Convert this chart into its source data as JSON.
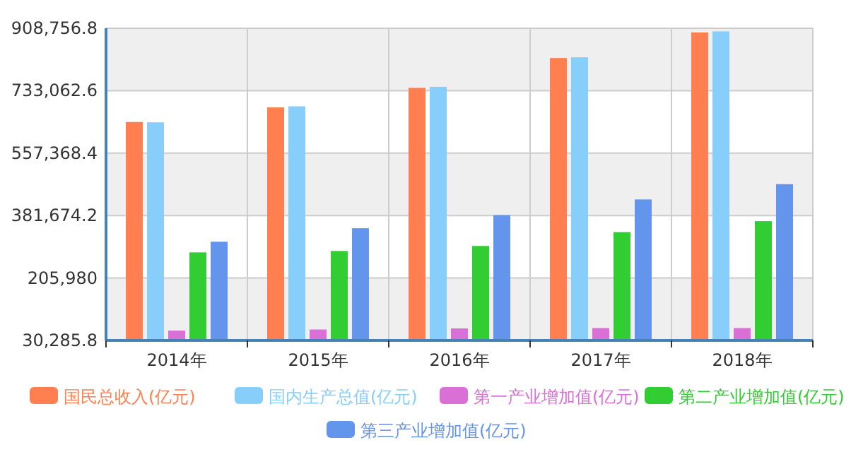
{
  "chart_data": {
    "type": "bar",
    "categories": [
      "2014年",
      "2015年",
      "2016年",
      "2017年",
      "2018年"
    ],
    "series": [
      {
        "name": "国民总收入(亿元)",
        "color": "#ff7f50",
        "values": [
          645000,
          686000,
          741000,
          825000,
          897000
        ]
      },
      {
        "name": "国内生产总值(亿元)",
        "color": "#87cefa",
        "values": [
          644000,
          689000,
          744000,
          827000,
          900000
        ]
      },
      {
        "name": "第一产业增加值(亿元)",
        "color": "#da70d6",
        "values": [
          58000,
          61000,
          64000,
          65000,
          65000
        ]
      },
      {
        "name": "第二产业增加值(亿元)",
        "color": "#32cd32",
        "values": [
          278000,
          282000,
          296000,
          335000,
          366000
        ]
      },
      {
        "name": "第三产业增加值(亿元)",
        "color": "#6495ed",
        "values": [
          308000,
          346000,
          383000,
          427000,
          470000
        ]
      }
    ],
    "ylim": [
      30285.8,
      908756.8
    ],
    "yticks": [
      {
        "value": 30285.8,
        "label": "30,285.8"
      },
      {
        "value": 205980,
        "label": "205,980"
      },
      {
        "value": 381674.2,
        "label": "381,674.2"
      },
      {
        "value": 557368.4,
        "label": "557,368.4"
      },
      {
        "value": 733062.6,
        "label": "733,062.6"
      },
      {
        "value": 908756.8,
        "label": "908,756.8"
      }
    ],
    "grid": true,
    "legend": "bottom"
  }
}
